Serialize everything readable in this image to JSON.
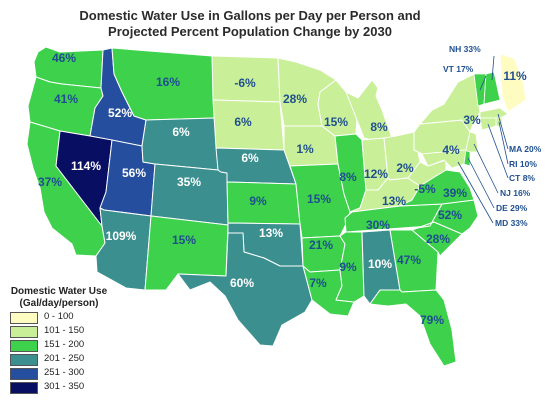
{
  "title": {
    "line1": "Domestic Water Use in Gallons per Day per Person and",
    "line2": "Projected Percent Population Change by 2030"
  },
  "colors": {
    "c0": "#fffcc2",
    "c1": "#c9f098",
    "c2": "#3dd14c",
    "c3": "#3b8f8f",
    "c4": "#254f9e",
    "c5": "#080f63",
    "state_border": "#ffffff",
    "outline": "#6b6b6b",
    "label_light": "#1f4f8f",
    "label_dark": "#ffffff",
    "label_external": "#1f4f8f"
  },
  "legend": {
    "title_line1": "Domestic Water Use",
    "title_line2": "(Gal/day/person)",
    "items": [
      {
        "range": "0 - 100",
        "color": "#fffcc2"
      },
      {
        "range": "101 - 150",
        "color": "#c9f098"
      },
      {
        "range": "151 - 200",
        "color": "#3dd14c"
      },
      {
        "range": "201 - 250",
        "color": "#3b8f8f"
      },
      {
        "range": "251 - 300",
        "color": "#254f9e"
      },
      {
        "range": "301 - 350",
        "color": "#080f63"
      }
    ]
  },
  "states": [
    {
      "name": "WA",
      "pct": "46%",
      "cls": 2
    },
    {
      "name": "OR",
      "pct": "41%",
      "cls": 2
    },
    {
      "name": "CA",
      "pct": "37%",
      "cls": 2
    },
    {
      "name": "ID",
      "pct": "52%",
      "cls": 4
    },
    {
      "name": "NV",
      "pct": "114%",
      "cls": 5
    },
    {
      "name": "UT",
      "pct": "56%",
      "cls": 4
    },
    {
      "name": "AZ",
      "pct": "109%",
      "cls": 3
    },
    {
      "name": "MT",
      "pct": "16%",
      "cls": 2
    },
    {
      "name": "WY",
      "pct": "6%",
      "cls": 3
    },
    {
      "name": "CO",
      "pct": "35%",
      "cls": 3
    },
    {
      "name": "NM",
      "pct": "15%",
      "cls": 2
    },
    {
      "name": "ND",
      "pct": "-6%",
      "cls": 1
    },
    {
      "name": "SD",
      "pct": "6%",
      "cls": 1
    },
    {
      "name": "NE",
      "pct": "6%",
      "cls": 3
    },
    {
      "name": "KS",
      "pct": "9%",
      "cls": 2
    },
    {
      "name": "OK",
      "pct": "13%",
      "cls": 3
    },
    {
      "name": "TX",
      "pct": "60%",
      "cls": 3
    },
    {
      "name": "MN",
      "pct": "28%",
      "cls": 1
    },
    {
      "name": "IA",
      "pct": "1%",
      "cls": 1
    },
    {
      "name": "MO",
      "pct": "15%",
      "cls": 2
    },
    {
      "name": "AR",
      "pct": "21%",
      "cls": 2
    },
    {
      "name": "LA",
      "pct": "7%",
      "cls": 2
    },
    {
      "name": "WI",
      "pct": "15%",
      "cls": 1
    },
    {
      "name": "IL",
      "pct": "8%",
      "cls": 2
    },
    {
      "name": "MI",
      "pct": "8%",
      "cls": 1
    },
    {
      "name": "IN",
      "pct": "12%",
      "cls": 1
    },
    {
      "name": "OH",
      "pct": "2%",
      "cls": 1
    },
    {
      "name": "KY",
      "pct": "13%",
      "cls": 1
    },
    {
      "name": "TN",
      "pct": "30%",
      "cls": 2
    },
    {
      "name": "MS",
      "pct": "9%",
      "cls": 2
    },
    {
      "name": "AL",
      "pct": "10%",
      "cls": 3
    },
    {
      "name": "GA",
      "pct": "47%",
      "cls": 2
    },
    {
      "name": "FL",
      "pct": "79%",
      "cls": 2
    },
    {
      "name": "SC",
      "pct": "28%",
      "cls": 2
    },
    {
      "name": "NC",
      "pct": "52%",
      "cls": 2
    },
    {
      "name": "VA",
      "pct": "39%",
      "cls": 2
    },
    {
      "name": "WV",
      "pct": "-5%",
      "cls": 1
    },
    {
      "name": "PA",
      "pct": "4%",
      "cls": 1
    },
    {
      "name": "NY",
      "pct": "3%",
      "cls": 1
    },
    {
      "name": "ME",
      "pct": "11%",
      "cls": 0
    }
  ],
  "external_labels": [
    {
      "name": "NH",
      "text": "NH 33%"
    },
    {
      "name": "VT",
      "text": "VT 17%"
    },
    {
      "name": "MA",
      "text": "MA 20%"
    },
    {
      "name": "RI",
      "text": "RI 10%"
    },
    {
      "name": "CT",
      "text": "CT 8%"
    },
    {
      "name": "NJ",
      "text": "NJ 16%"
    },
    {
      "name": "DE",
      "text": "DE 29%"
    },
    {
      "name": "MD",
      "text": "MD 33%"
    }
  ]
}
